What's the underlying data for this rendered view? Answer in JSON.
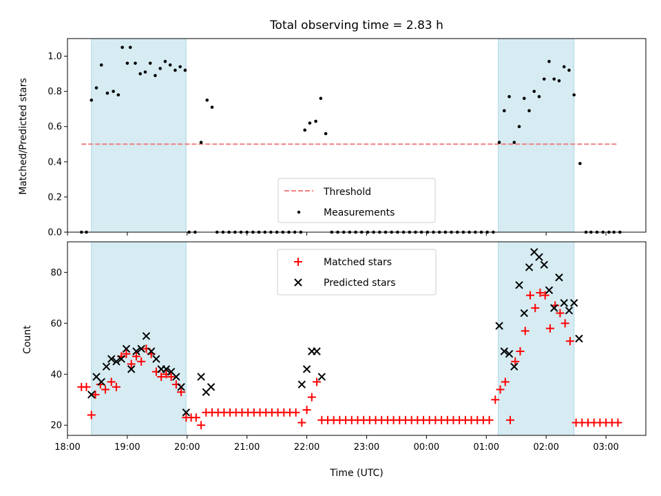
{
  "chart_data": [
    {
      "type": "scatter",
      "panel": "top",
      "title": "Total observing time = 2.83 h",
      "ylabel": "Matched/Predicted stars",
      "xlabel": "",
      "xlim": [
        "18:00",
        "03:40"
      ],
      "ylim": [
        0,
        1.1
      ],
      "yticks": [
        0.0,
        0.2,
        0.4,
        0.6,
        0.8,
        1.0
      ],
      "ytick_labels": [
        "0.0",
        "0.2",
        "0.4",
        "0.6",
        "0.8",
        "1.0"
      ],
      "xticks": [
        "18:00",
        "19:00",
        "20:00",
        "21:00",
        "22:00",
        "23:00",
        "00:00",
        "01:00",
        "02:00",
        "03:00"
      ],
      "shaded_spans": [
        [
          "18:24",
          "19:59"
        ],
        [
          "01:12",
          "02:28"
        ]
      ],
      "threshold": {
        "name": "Threshold",
        "y": 0.5,
        "x_start": "18:14",
        "x_end": "03:12",
        "color": "#f08080"
      },
      "legend": {
        "position": "lower-center",
        "entries": [
          "Threshold",
          "Measurements"
        ]
      },
      "series": [
        {
          "name": "Measurements",
          "color": "#000000",
          "points": [
            [
              "18:14",
              0.0
            ],
            [
              "18:19",
              0.0
            ],
            [
              "18:24",
              0.75
            ],
            [
              "18:29",
              0.82
            ],
            [
              "18:34",
              0.95
            ],
            [
              "18:40",
              0.79
            ],
            [
              "18:46",
              0.8
            ],
            [
              "18:51",
              0.78
            ],
            [
              "18:55",
              1.05
            ],
            [
              "19:00",
              0.96
            ],
            [
              "19:03",
              1.05
            ],
            [
              "19:08",
              0.96
            ],
            [
              "19:13",
              0.9
            ],
            [
              "19:18",
              0.91
            ],
            [
              "19:23",
              0.96
            ],
            [
              "19:28",
              0.89
            ],
            [
              "19:33",
              0.93
            ],
            [
              "19:38",
              0.97
            ],
            [
              "19:43",
              0.95
            ],
            [
              "19:48",
              0.92
            ],
            [
              "19:53",
              0.94
            ],
            [
              "19:58",
              0.92
            ],
            [
              "20:02",
              0.0
            ],
            [
              "20:08",
              0.0
            ],
            [
              "20:14",
              0.51
            ],
            [
              "20:20",
              0.75
            ],
            [
              "20:25",
              0.71
            ],
            [
              "20:30",
              0.0
            ],
            [
              "20:36",
              0.0
            ],
            [
              "20:42",
              0.0
            ],
            [
              "20:48",
              0.0
            ],
            [
              "20:54",
              0.0
            ],
            [
              "21:00",
              0.0
            ],
            [
              "21:06",
              0.0
            ],
            [
              "21:12",
              0.0
            ],
            [
              "21:18",
              0.0
            ],
            [
              "21:24",
              0.0
            ],
            [
              "21:30",
              0.0
            ],
            [
              "21:36",
              0.0
            ],
            [
              "21:42",
              0.0
            ],
            [
              "21:48",
              0.0
            ],
            [
              "21:54",
              0.0
            ],
            [
              "21:58",
              0.58
            ],
            [
              "22:03",
              0.62
            ],
            [
              "22:09",
              0.63
            ],
            [
              "22:14",
              0.76
            ],
            [
              "22:19",
              0.56
            ],
            [
              "22:25",
              0.0
            ],
            [
              "22:31",
              0.0
            ],
            [
              "22:37",
              0.0
            ],
            [
              "22:43",
              0.0
            ],
            [
              "22:49",
              0.0
            ],
            [
              "22:55",
              0.0
            ],
            [
              "23:01",
              0.0
            ],
            [
              "23:07",
              0.0
            ],
            [
              "23:13",
              0.0
            ],
            [
              "23:19",
              0.0
            ],
            [
              "23:25",
              0.0
            ],
            [
              "23:31",
              0.0
            ],
            [
              "23:37",
              0.0
            ],
            [
              "23:43",
              0.0
            ],
            [
              "23:49",
              0.0
            ],
            [
              "23:55",
              0.0
            ],
            [
              "00:01",
              0.0
            ],
            [
              "00:07",
              0.0
            ],
            [
              "00:13",
              0.0
            ],
            [
              "00:19",
              0.0
            ],
            [
              "00:25",
              0.0
            ],
            [
              "00:31",
              0.0
            ],
            [
              "00:37",
              0.0
            ],
            [
              "00:43",
              0.0
            ],
            [
              "00:49",
              0.0
            ],
            [
              "00:55",
              0.0
            ],
            [
              "01:01",
              0.0
            ],
            [
              "01:07",
              0.0
            ],
            [
              "01:13",
              0.51
            ],
            [
              "01:18",
              0.69
            ],
            [
              "01:23",
              0.77
            ],
            [
              "01:28",
              0.51
            ],
            [
              "01:33",
              0.6
            ],
            [
              "01:38",
              0.76
            ],
            [
              "01:43",
              0.69
            ],
            [
              "01:48",
              0.8
            ],
            [
              "01:53",
              0.77
            ],
            [
              "01:58",
              0.87
            ],
            [
              "02:03",
              0.97
            ],
            [
              "02:08",
              0.87
            ],
            [
              "02:13",
              0.86
            ],
            [
              "02:18",
              0.94
            ],
            [
              "02:23",
              0.92
            ],
            [
              "02:28",
              0.78
            ],
            [
              "02:34",
              0.39
            ],
            [
              "02:40",
              0.0
            ],
            [
              "02:45",
              0.0
            ],
            [
              "02:51",
              0.0
            ],
            [
              "02:57",
              0.0
            ],
            [
              "03:03",
              0.0
            ],
            [
              "03:08",
              0.0
            ],
            [
              "03:14",
              0.0
            ]
          ]
        }
      ]
    },
    {
      "type": "scatter",
      "panel": "bottom",
      "title": "",
      "xlabel": "Time (UTC)",
      "ylabel": "Count",
      "xlim": [
        "18:00",
        "03:40"
      ],
      "ylim": [
        16,
        92
      ],
      "yticks": [
        20,
        40,
        60,
        80
      ],
      "ytick_labels": [
        "20",
        "40",
        "60",
        "80"
      ],
      "xticks": [
        "18:00",
        "19:00",
        "20:00",
        "21:00",
        "22:00",
        "23:00",
        "00:00",
        "01:00",
        "02:00",
        "03:00"
      ],
      "xtick_labels": [
        "18:00",
        "19:00",
        "20:00",
        "21:00",
        "22:00",
        "23:00",
        "00:00",
        "01:00",
        "02:00",
        "03:00"
      ],
      "shaded_spans": [
        [
          "18:24",
          "19:59"
        ],
        [
          "01:12",
          "02:28"
        ]
      ],
      "legend": {
        "position": "upper-center",
        "entries": [
          "Matched stars",
          "Predicted stars"
        ]
      },
      "series": [
        {
          "name": "Matched stars",
          "marker": "+",
          "color": "#ff0000",
          "points": [
            [
              "18:14",
              35
            ],
            [
              "18:19",
              35
            ],
            [
              "18:24",
              24
            ],
            [
              "18:28",
              32
            ],
            [
              "18:33",
              36
            ],
            [
              "18:38",
              34
            ],
            [
              "18:44",
              37
            ],
            [
              "18:49",
              35
            ],
            [
              "18:54",
              47
            ],
            [
              "18:59",
              48
            ],
            [
              "19:04",
              44
            ],
            [
              "19:09",
              47
            ],
            [
              "19:14",
              45
            ],
            [
              "19:19",
              50
            ],
            [
              "19:24",
              48
            ],
            [
              "19:29",
              41
            ],
            [
              "19:34",
              39
            ],
            [
              "19:39",
              40
            ],
            [
              "19:44",
              39
            ],
            [
              "19:49",
              36
            ],
            [
              "19:54",
              33
            ],
            [
              "19:59",
              23
            ],
            [
              "20:04",
              23
            ],
            [
              "20:09",
              23
            ],
            [
              "20:14",
              20
            ],
            [
              "20:19",
              25
            ],
            [
              "20:25",
              25
            ],
            [
              "20:31",
              25
            ],
            [
              "20:37",
              25
            ],
            [
              "20:43",
              25
            ],
            [
              "20:49",
              25
            ],
            [
              "20:55",
              25
            ],
            [
              "21:01",
              25
            ],
            [
              "21:07",
              25
            ],
            [
              "21:13",
              25
            ],
            [
              "21:19",
              25
            ],
            [
              "21:25",
              25
            ],
            [
              "21:31",
              25
            ],
            [
              "21:37",
              25
            ],
            [
              "21:43",
              25
            ],
            [
              "21:49",
              25
            ],
            [
              "21:55",
              21
            ],
            [
              "22:00",
              26
            ],
            [
              "22:05",
              31
            ],
            [
              "22:10",
              37
            ],
            [
              "22:15",
              22
            ],
            [
              "22:21",
              22
            ],
            [
              "22:27",
              22
            ],
            [
              "22:33",
              22
            ],
            [
              "22:39",
              22
            ],
            [
              "22:45",
              22
            ],
            [
              "22:51",
              22
            ],
            [
              "22:57",
              22
            ],
            [
              "23:03",
              22
            ],
            [
              "23:09",
              22
            ],
            [
              "23:15",
              22
            ],
            [
              "23:21",
              22
            ],
            [
              "23:27",
              22
            ],
            [
              "23:33",
              22
            ],
            [
              "23:39",
              22
            ],
            [
              "23:45",
              22
            ],
            [
              "23:51",
              22
            ],
            [
              "23:57",
              22
            ],
            [
              "00:03",
              22
            ],
            [
              "00:09",
              22
            ],
            [
              "00:15",
              22
            ],
            [
              "00:21",
              22
            ],
            [
              "00:27",
              22
            ],
            [
              "00:33",
              22
            ],
            [
              "00:39",
              22
            ],
            [
              "00:45",
              22
            ],
            [
              "00:51",
              22
            ],
            [
              "00:57",
              22
            ],
            [
              "01:03",
              22
            ],
            [
              "01:09",
              30
            ],
            [
              "01:14",
              34
            ],
            [
              "01:19",
              37
            ],
            [
              "01:24",
              22
            ],
            [
              "01:29",
              45
            ],
            [
              "01:34",
              49
            ],
            [
              "01:39",
              57
            ],
            [
              "01:44",
              71
            ],
            [
              "01:49",
              66
            ],
            [
              "01:54",
              72
            ],
            [
              "01:59",
              71
            ],
            [
              "02:04",
              58
            ],
            [
              "02:09",
              67
            ],
            [
              "02:14",
              64
            ],
            [
              "02:19",
              60
            ],
            [
              "02:24",
              53
            ],
            [
              "02:30",
              21
            ],
            [
              "02:36",
              21
            ],
            [
              "02:42",
              21
            ],
            [
              "02:48",
              21
            ],
            [
              "02:54",
              21
            ],
            [
              "03:00",
              21
            ],
            [
              "03:06",
              21
            ],
            [
              "03:12",
              21
            ]
          ]
        },
        {
          "name": "Predicted stars",
          "marker": "x",
          "color": "#000000",
          "points": [
            [
              "18:24",
              32
            ],
            [
              "18:29",
              39
            ],
            [
              "18:34",
              37
            ],
            [
              "18:39",
              43
            ],
            [
              "18:44",
              46
            ],
            [
              "18:49",
              45
            ],
            [
              "18:54",
              46
            ],
            [
              "18:59",
              50
            ],
            [
              "19:04",
              42
            ],
            [
              "19:09",
              49
            ],
            [
              "19:14",
              50
            ],
            [
              "19:19",
              55
            ],
            [
              "19:24",
              49
            ],
            [
              "19:29",
              46
            ],
            [
              "19:34",
              42
            ],
            [
              "19:39",
              42
            ],
            [
              "19:44",
              41
            ],
            [
              "19:49",
              39
            ],
            [
              "19:54",
              35
            ],
            [
              "19:59",
              25
            ],
            [
              "20:14",
              39
            ],
            [
              "20:19",
              33
            ],
            [
              "20:24",
              35
            ],
            [
              "21:55",
              36
            ],
            [
              "22:00",
              42
            ],
            [
              "22:05",
              49
            ],
            [
              "22:10",
              49
            ],
            [
              "22:15",
              39
            ],
            [
              "01:13",
              59
            ],
            [
              "01:18",
              49
            ],
            [
              "01:23",
              48
            ],
            [
              "01:28",
              43
            ],
            [
              "01:33",
              75
            ],
            [
              "01:38",
              64
            ],
            [
              "01:43",
              82
            ],
            [
              "01:48",
              88
            ],
            [
              "01:53",
              86
            ],
            [
              "01:58",
              83
            ],
            [
              "02:03",
              73
            ],
            [
              "02:08",
              66
            ],
            [
              "02:13",
              78
            ],
            [
              "02:18",
              68
            ],
            [
              "02:23",
              65
            ],
            [
              "02:28",
              68
            ],
            [
              "02:33",
              54
            ]
          ]
        }
      ]
    }
  ]
}
